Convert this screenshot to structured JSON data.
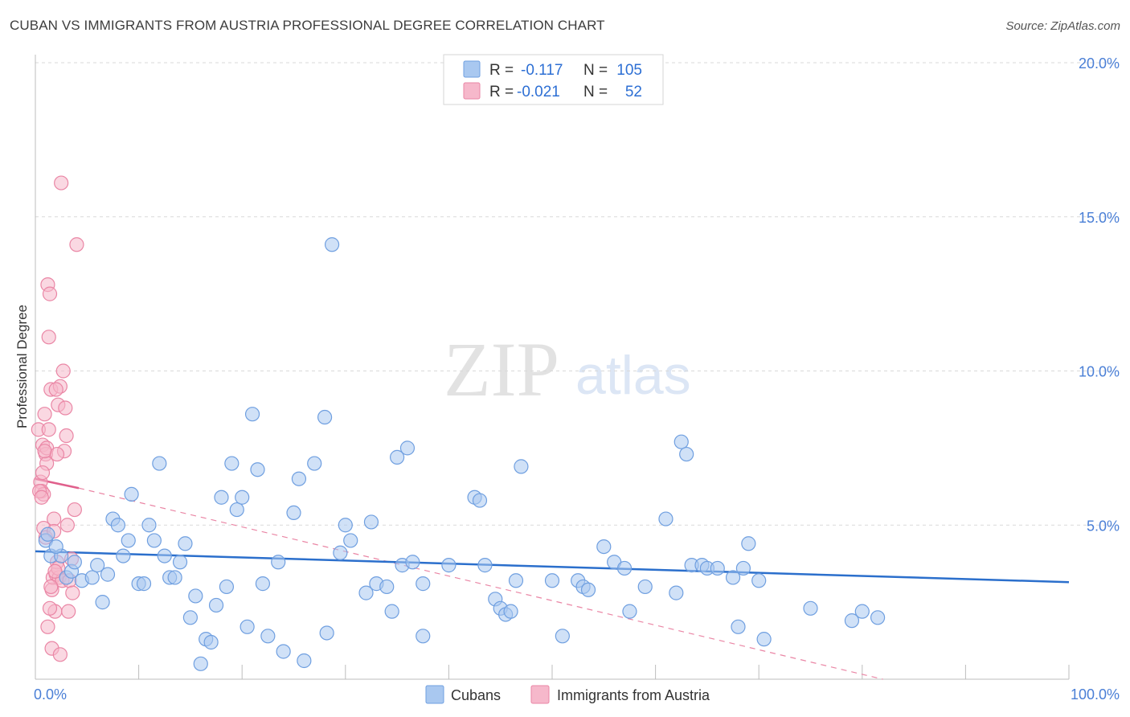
{
  "title": "CUBAN VS IMMIGRANTS FROM AUSTRIA PROFESSIONAL DEGREE CORRELATION CHART",
  "source": "Source: ZipAtlas.com",
  "watermark": {
    "part1": "ZIP",
    "part2": "atlas"
  },
  "colors": {
    "blue_fill": "#a9c8f0",
    "blue_stroke": "#6f9fe0",
    "blue_line": "#2b6fcc",
    "pink_fill": "#f6b8cb",
    "pink_stroke": "#ea86a5",
    "pink_line": "#e0608c",
    "grid": "#d9d9d9",
    "tick_text": "#4a7fd6"
  },
  "legend": {
    "row1": {
      "r_label": "R =",
      "r_value": "-0.117",
      "n_label": "N =",
      "n_value": "105"
    },
    "row2": {
      "r_label": "R =",
      "r_value": "-0.021",
      "n_label": "N =",
      "n_value": "52"
    }
  },
  "bottom_legend": {
    "series1": "Cubans",
    "series2": "Immigrants from Austria"
  },
  "chart_data": {
    "type": "scatter",
    "title": "CUBAN VS IMMIGRANTS FROM AUSTRIA PROFESSIONAL DEGREE CORRELATION CHART",
    "xlabel": "",
    "ylabel": "Professional Degree",
    "xlim": [
      0,
      100
    ],
    "ylim": [
      0,
      20
    ],
    "x_ticks": {
      "min_label": "0.0%",
      "max_label": "100.0%"
    },
    "y_ticks": [
      {
        "value": 5,
        "label": "5.0%"
      },
      {
        "value": 10,
        "label": "10.0%"
      },
      {
        "value": 15,
        "label": "15.0%"
      },
      {
        "value": 20,
        "label": "20.0%"
      }
    ],
    "series": [
      {
        "name": "Cubans",
        "color": "#a9c8f0",
        "trend": {
          "x0": 0,
          "y0": 4.15,
          "x1": 100,
          "y1": 3.15,
          "style": "solid"
        },
        "points": [
          [
            1.0,
            4.5
          ],
          [
            1.5,
            4.0
          ],
          [
            2.5,
            4.0
          ],
          [
            3.0,
            3.3
          ],
          [
            3.5,
            3.5
          ],
          [
            4.5,
            3.2
          ],
          [
            5.5,
            3.3
          ],
          [
            6.0,
            3.7
          ],
          [
            6.5,
            2.5
          ],
          [
            7.0,
            3.4
          ],
          [
            7.5,
            5.2
          ],
          [
            8.0,
            5.0
          ],
          [
            8.5,
            4.0
          ],
          [
            9.0,
            4.5
          ],
          [
            9.3,
            6.0
          ],
          [
            10.0,
            3.1
          ],
          [
            10.5,
            3.1
          ],
          [
            11.0,
            5.0
          ],
          [
            11.5,
            4.5
          ],
          [
            12.0,
            7.0
          ],
          [
            12.5,
            4.0
          ],
          [
            13.0,
            3.3
          ],
          [
            13.5,
            3.3
          ],
          [
            14.0,
            3.8
          ],
          [
            14.5,
            4.4
          ],
          [
            15.0,
            2.0
          ],
          [
            15.5,
            2.7
          ],
          [
            16.0,
            0.5
          ],
          [
            16.5,
            1.3
          ],
          [
            17.0,
            1.2
          ],
          [
            17.5,
            2.4
          ],
          [
            18.0,
            5.9
          ],
          [
            18.5,
            3.0
          ],
          [
            19.0,
            7.0
          ],
          [
            19.5,
            5.5
          ],
          [
            20.0,
            5.9
          ],
          [
            20.5,
            1.7
          ],
          [
            21.0,
            8.6
          ],
          [
            21.5,
            6.8
          ],
          [
            22.0,
            3.1
          ],
          [
            22.5,
            1.4
          ],
          [
            23.5,
            3.8
          ],
          [
            24.0,
            0.9
          ],
          [
            25.0,
            5.4
          ],
          [
            25.5,
            6.5
          ],
          [
            26.0,
            0.6
          ],
          [
            27.0,
            7.0
          ],
          [
            28.0,
            8.5
          ],
          [
            28.2,
            1.5
          ],
          [
            28.7,
            14.1
          ],
          [
            29.5,
            4.1
          ],
          [
            30.0,
            5.0
          ],
          [
            30.5,
            4.5
          ],
          [
            32.0,
            2.8
          ],
          [
            32.5,
            5.1
          ],
          [
            33.0,
            3.1
          ],
          [
            34.0,
            3.0
          ],
          [
            34.5,
            2.2
          ],
          [
            35.0,
            7.2
          ],
          [
            35.5,
            3.7
          ],
          [
            36.0,
            7.5
          ],
          [
            36.5,
            3.8
          ],
          [
            37.5,
            3.1
          ],
          [
            37.5,
            1.4
          ],
          [
            40.0,
            3.7
          ],
          [
            42.5,
            5.9
          ],
          [
            43.0,
            5.8
          ],
          [
            43.5,
            3.7
          ],
          [
            44.5,
            2.6
          ],
          [
            45.0,
            2.3
          ],
          [
            45.5,
            2.1
          ],
          [
            46.0,
            2.2
          ],
          [
            46.5,
            3.2
          ],
          [
            47.0,
            6.9
          ],
          [
            50.0,
            3.2
          ],
          [
            51.0,
            1.4
          ],
          [
            52.5,
            3.2
          ],
          [
            53.0,
            3.0
          ],
          [
            53.5,
            2.9
          ],
          [
            55.0,
            4.3
          ],
          [
            56.0,
            3.8
          ],
          [
            57.0,
            3.6
          ],
          [
            57.5,
            2.2
          ],
          [
            59.0,
            3.0
          ],
          [
            61.0,
            5.2
          ],
          [
            62.0,
            2.8
          ],
          [
            62.5,
            7.7
          ],
          [
            63.0,
            7.3
          ],
          [
            63.5,
            3.7
          ],
          [
            64.5,
            3.7
          ],
          [
            65.0,
            3.6
          ],
          [
            66.0,
            3.6
          ],
          [
            67.5,
            3.3
          ],
          [
            68.0,
            1.7
          ],
          [
            68.5,
            3.6
          ],
          [
            69.0,
            4.4
          ],
          [
            70.0,
            3.2
          ],
          [
            70.5,
            1.3
          ],
          [
            75.0,
            2.3
          ],
          [
            79.0,
            1.9
          ],
          [
            80.0,
            2.2
          ],
          [
            81.5,
            2.0
          ],
          [
            1.2,
            4.7
          ],
          [
            3.8,
            3.8
          ],
          [
            2.0,
            4.3
          ]
        ]
      },
      {
        "name": "Immigrants from Austria",
        "color": "#f6b8cb",
        "trend": {
          "x0": 0,
          "y0": 6.5,
          "x1": 4.2,
          "y1": 6.2,
          "style": "solid",
          "extended": {
            "x0": 4.2,
            "y0": 6.2,
            "x1": 82,
            "y1": 0.0,
            "style": "dashed"
          }
        },
        "points": [
          [
            0.3,
            8.1
          ],
          [
            0.5,
            6.4
          ],
          [
            0.6,
            6.1
          ],
          [
            0.7,
            7.6
          ],
          [
            0.8,
            6.0
          ],
          [
            0.9,
            8.6
          ],
          [
            1.0,
            7.3
          ],
          [
            1.1,
            7.0
          ],
          [
            1.2,
            12.8
          ],
          [
            1.3,
            11.1
          ],
          [
            1.4,
            12.5
          ],
          [
            1.5,
            9.4
          ],
          [
            1.6,
            2.9
          ],
          [
            1.7,
            3.3
          ],
          [
            1.8,
            5.2
          ],
          [
            1.9,
            2.2
          ],
          [
            2.0,
            3.4
          ],
          [
            2.1,
            3.8
          ],
          [
            2.2,
            8.9
          ],
          [
            2.3,
            3.3
          ],
          [
            2.4,
            9.5
          ],
          [
            2.5,
            16.1
          ],
          [
            2.6,
            3.2
          ],
          [
            2.7,
            10.0
          ],
          [
            2.8,
            7.4
          ],
          [
            2.9,
            8.8
          ],
          [
            3.0,
            7.9
          ],
          [
            3.1,
            5.0
          ],
          [
            3.2,
            2.2
          ],
          [
            3.3,
            3.2
          ],
          [
            3.5,
            3.9
          ],
          [
            3.6,
            2.8
          ],
          [
            3.8,
            5.5
          ],
          [
            4.0,
            14.1
          ],
          [
            0.4,
            6.1
          ],
          [
            0.6,
            5.9
          ],
          [
            0.8,
            4.9
          ],
          [
            1.0,
            4.6
          ],
          [
            1.2,
            1.7
          ],
          [
            1.4,
            2.3
          ],
          [
            1.6,
            1.0
          ],
          [
            1.8,
            4.8
          ],
          [
            2.0,
            9.4
          ],
          [
            2.2,
            3.6
          ],
          [
            2.4,
            0.8
          ],
          [
            1.1,
            7.5
          ],
          [
            1.3,
            8.1
          ],
          [
            0.9,
            7.4
          ],
          [
            1.5,
            3.0
          ],
          [
            2.1,
            7.3
          ],
          [
            0.7,
            6.7
          ],
          [
            1.9,
            3.5
          ]
        ]
      }
    ]
  }
}
